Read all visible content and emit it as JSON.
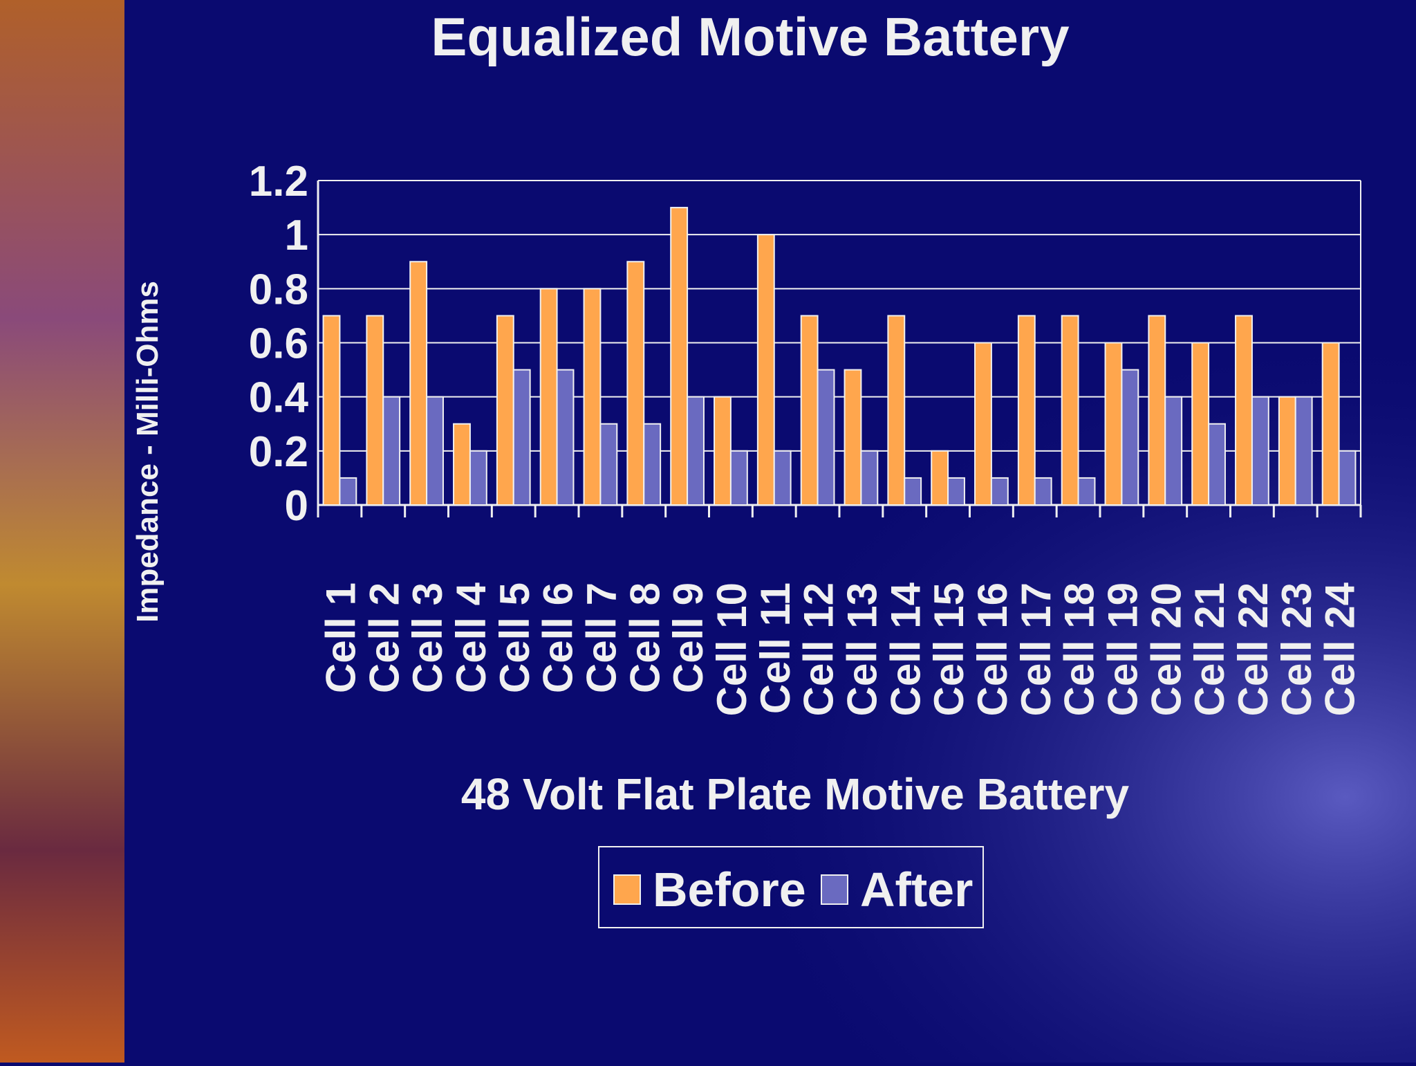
{
  "chart_data": {
    "type": "bar",
    "title": "Equalized Motive Battery",
    "x_label": "48 Volt Flat Plate Motive Battery",
    "y_label": "Impedance - Milli-Ohms",
    "categories": [
      "Cell 1",
      "Cell 2",
      "Cell 3",
      "Cell 4",
      "Cell 5",
      "Cell 6",
      "Cell 7",
      "Cell 8",
      "Cell 9",
      "Cell 10",
      "Cell 11",
      "Cell 12",
      "Cell 13",
      "Cell 14",
      "Cell 15",
      "Cell 16",
      "Cell 17",
      "Cell 18",
      "Cell 19",
      "Cell 20",
      "Cell 21",
      "Cell 22",
      "Cell 23",
      "Cell 24"
    ],
    "series": [
      {
        "name": "Before",
        "color": "#ffa64d",
        "values": [
          0.7,
          0.7,
          0.9,
          0.3,
          0.7,
          0.8,
          0.8,
          0.9,
          1.1,
          0.4,
          1.0,
          0.7,
          0.5,
          0.7,
          0.2,
          0.6,
          0.7,
          0.7,
          0.6,
          0.7,
          0.6,
          0.7,
          0.4,
          0.6
        ]
      },
      {
        "name": "After",
        "color": "#6a6ac0",
        "values": [
          0.1,
          0.4,
          0.4,
          0.2,
          0.5,
          0.5,
          0.3,
          0.3,
          0.4,
          0.2,
          0.2,
          0.5,
          0.2,
          0.1,
          0.1,
          0.1,
          0.1,
          0.1,
          0.5,
          0.4,
          0.3,
          0.4,
          0.4,
          0.2
        ]
      }
    ],
    "ylim": [
      0,
      1.2
    ],
    "yticks": [
      0,
      0.2,
      0.4,
      0.6,
      0.8,
      1,
      1.2
    ],
    "grid": true,
    "legend": "bottom"
  }
}
